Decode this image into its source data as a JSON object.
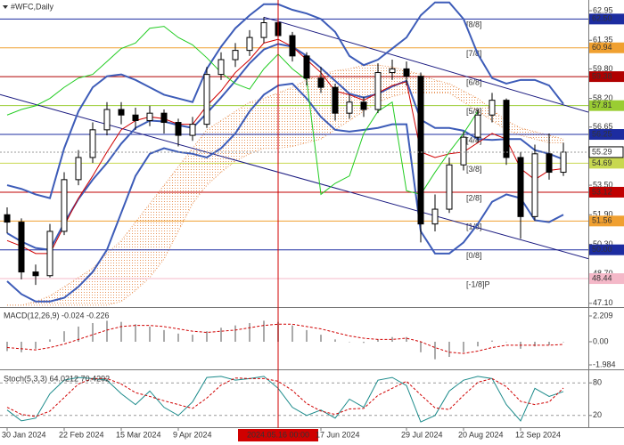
{
  "chart_data": [
    {
      "type": "candlestick",
      "title": "#WFC,Daily",
      "categories": [
        {
          "label": "30 Jan 2024"
        },
        null,
        null,
        null,
        {
          "label": "22 Feb 2024"
        },
        null,
        null,
        null,
        {
          "label": "15 Mar 2024"
        },
        null,
        null,
        null,
        {
          "label": "9 Apr 2024"
        },
        null,
        null,
        null,
        null,
        null,
        null,
        {
          "label": "2024.05.16 00:00",
          "crosshair": true
        },
        null,
        null,
        {
          "label": "17 Jun 2024"
        },
        null,
        null,
        null,
        null,
        null,
        {
          "label": "29 Jul 2024"
        },
        null,
        null,
        null,
        {
          "label": "20 Aug 2024"
        },
        null,
        null,
        null,
        {
          "label": "12 Sep 2024"
        },
        null,
        null,
        null
      ],
      "open": [
        51.9,
        51.5,
        48.8,
        48.6,
        51.0,
        53.8,
        55.0,
        56.5,
        57.6,
        57.3,
        57.0,
        57.4,
        56.9,
        56.2,
        56.8,
        59.5,
        60.3,
        60.8,
        61.5,
        62.3,
        61.6,
        60.5,
        59.3,
        58.8,
        57.4,
        58.0,
        57.6,
        59.6,
        59.8,
        59.4,
        51.4,
        52.2,
        54.6,
        56.1,
        57.3,
        58.1,
        55.0,
        51.8,
        55.2,
        54.2
      ],
      "high": [
        52.3,
        51.7,
        49.2,
        51.4,
        54.2,
        55.4,
        56.9,
        58.0,
        58.0,
        57.7,
        57.8,
        57.6,
        57.1,
        57.2,
        59.9,
        60.7,
        61.2,
        61.9,
        62.6,
        62.5,
        61.8,
        60.7,
        59.9,
        59.0,
        58.4,
        58.3,
        60.1,
        60.3,
        60.2,
        59.6,
        53.0,
        55.0,
        56.4,
        57.6,
        58.5,
        58.2,
        55.3,
        55.7,
        56.3,
        55.8
      ],
      "low": [
        50.9,
        48.4,
        48.1,
        48.5,
        50.8,
        53.5,
        54.7,
        56.2,
        56.8,
        56.5,
        56.7,
        56.3,
        55.6,
        55.9,
        56.6,
        59.2,
        59.9,
        60.5,
        61.2,
        61.2,
        60.2,
        58.9,
        58.5,
        57.0,
        57.1,
        57.2,
        57.4,
        59.2,
        58.9,
        50.4,
        51.0,
        52.0,
        54.3,
        55.8,
        56.9,
        54.6,
        50.6,
        51.6,
        53.8,
        54.0
      ],
      "close": [
        51.5,
        48.8,
        48.6,
        51.0,
        53.8,
        55.0,
        56.5,
        57.6,
        57.3,
        57.0,
        57.4,
        56.9,
        56.2,
        56.8,
        59.5,
        60.3,
        60.8,
        61.5,
        62.3,
        61.6,
        60.5,
        59.3,
        58.8,
        57.4,
        58.0,
        57.6,
        59.6,
        59.8,
        59.4,
        51.4,
        52.2,
        54.6,
        56.1,
        57.3,
        58.1,
        55.0,
        51.8,
        55.2,
        54.2,
        55.29
      ],
      "up_color": "#ffffff",
      "down_color": "#000000",
      "overlays": [
        {
          "color": "#3d5cb8",
          "width": 2,
          "values": [
            53.5,
            53.3,
            53.0,
            52.8,
            55.5,
            57.5,
            58.8,
            59.4,
            59.5,
            59.2,
            58.8,
            58.4,
            58.2,
            58.0,
            59.8,
            61.0,
            62.0,
            62.7,
            63.3,
            63.3,
            63.0,
            62.8,
            62.5,
            61.8,
            60.5,
            60.0,
            60.3,
            60.9,
            61.5,
            62.7,
            63.4,
            63.4,
            62.5,
            60.6,
            59.3,
            59.0,
            59.2,
            59.2,
            58.9,
            57.9
          ]
        },
        {
          "color": "#3d5cb8",
          "width": 2,
          "values": [
            50.9,
            50.45,
            50.1,
            50.0,
            51.45,
            52.75,
            53.8,
            54.7,
            55.75,
            56.6,
            57.0,
            56.95,
            56.75,
            56.6,
            57.4,
            58.25,
            59.15,
            60.1,
            60.85,
            61.15,
            61.0,
            60.5,
            59.85,
            59.15,
            58.45,
            58.25,
            58.45,
            58.85,
            59.15,
            57.05,
            56.6,
            56.6,
            56.45,
            56.0,
            55.95,
            56.0,
            56.0,
            55.4,
            55.2,
            54.9
          ]
        },
        {
          "color": "#3d5cb8",
          "width": 2,
          "values": [
            48.3,
            47.6,
            47.2,
            47.2,
            47.4,
            48.0,
            48.8,
            50.0,
            52.0,
            54.0,
            55.2,
            55.5,
            55.3,
            55.2,
            55.0,
            55.5,
            56.3,
            57.5,
            58.4,
            58.9,
            59.0,
            58.2,
            57.2,
            56.5,
            56.4,
            56.5,
            56.6,
            56.8,
            56.8,
            51.0,
            49.8,
            49.8,
            50.4,
            51.4,
            52.6,
            53.0,
            52.8,
            51.6,
            51.5,
            51.9
          ]
        },
        {
          "color": "#d00000",
          "width": 1,
          "values": [
            50.5,
            50.2,
            49.8,
            49.8,
            51.3,
            52.8,
            54.0,
            55.3,
            56.5,
            57.0,
            57.2,
            57.1,
            56.8,
            56.8,
            57.8,
            58.6,
            59.6,
            60.3,
            61.2,
            61.4,
            61.0,
            60.3,
            59.6,
            58.6,
            58.4,
            58.1,
            58.5,
            58.9,
            59.1,
            55.3,
            55.0,
            55.2,
            55.3,
            55.8,
            56.3,
            56.0,
            54.4,
            53.8,
            54.3,
            54.4
          ]
        },
        {
          "color": "#22cc22",
          "width": 1,
          "values": [
            57.3,
            57.6,
            57.8,
            58.2,
            58.8,
            59.3,
            59.5,
            60.2,
            60.9,
            61.2,
            62.0,
            62.1,
            61.5,
            61.1,
            60.4,
            59.6,
            59.0,
            58.7,
            59.8,
            60.6,
            59.8,
            59.2,
            53.0,
            53.6,
            54.0,
            56.3,
            57.5,
            58.0,
            53.2,
            53.0,
            54.2,
            55.3,
            56.3,
            57.5,
            null,
            null,
            null,
            null,
            null,
            null
          ]
        }
      ],
      "cloud": {
        "color": "#e8955a",
        "span_a": [
          47.0,
          47.0,
          47.2,
          47.5,
          48.0,
          48.5,
          49.0,
          49.8,
          50.5,
          51.5,
          52.5,
          53.5,
          54.5,
          55.5,
          56.5,
          57.0,
          57.5,
          58.0,
          58.2,
          58.5,
          58.8,
          59.2,
          59.5,
          59.7,
          59.8,
          60.0,
          60.0,
          59.9,
          59.7,
          59.5,
          59.2,
          59.0,
          58.6,
          58.2,
          57.6,
          57.0,
          56.6,
          56.4,
          56.2,
          56.0
        ],
        "span_b": [
          47.0,
          47.0,
          47.0,
          47.0,
          47.0,
          47.0,
          47.0,
          47.0,
          47.2,
          47.8,
          48.5,
          49.5,
          51.0,
          52.5,
          53.5,
          54.2,
          54.8,
          55.2,
          55.5,
          55.5,
          55.6,
          55.8,
          56.0,
          56.5,
          57.0,
          57.5,
          58.0,
          58.3,
          58.5,
          58.5,
          58.5,
          58.5,
          58.0,
          57.5,
          57.0,
          56.5,
          56.2,
          56.0,
          55.8,
          55.8
        ]
      },
      "trendlines": [
        {
          "color": "#1a1a80",
          "start": [
            0,
            58.3
          ],
          "end": [
            39,
            49.9
          ]
        },
        {
          "color": "#1a1a80",
          "start": [
            18,
            62.6
          ],
          "end": [
            39,
            57.85
          ]
        }
      ],
      "levels": [
        {
          "name": "[8/8]",
          "value": 62.5,
          "value_label": "62.50",
          "color": "#1c2ca0",
          "text_color": "#ffffff"
        },
        {
          "name": "[7/8]",
          "value": 60.94,
          "color": "#f0a030",
          "text_color": "#ffffff"
        },
        {
          "name": "[6/8]",
          "value": 59.38,
          "color": "#b00000",
          "text_color": "#ffffff"
        },
        {
          "name": "[5/8]",
          "value": 57.81,
          "color": "#9acd32",
          "text_color": "#000000"
        },
        {
          "name": "[4/8]",
          "value": 56.25,
          "color": "#1c2ca0",
          "text_color": "#ffffff"
        },
        {
          "name": "[3/8]",
          "value": 54.69,
          "color": "#c8d850",
          "text_color": "#000000"
        },
        {
          "name": "[2/8]",
          "value": 53.12,
          "color": "#c00000",
          "text_color": "#ffffff"
        },
        {
          "name": "[1/8]",
          "value": 51.56,
          "color": "#f0a030",
          "text_color": "#ffffff"
        },
        {
          "name": "[0/8]",
          "value": 50.0,
          "value_label": "50.00",
          "color": "#1c2ca0",
          "text_color": "#ffffff"
        },
        {
          "name": "[-1/8]P",
          "value": 48.44,
          "color": "#f4b8c8",
          "text_color": "#ffffff"
        }
      ],
      "current_price": 55.29,
      "ylim": [
        46.9,
        63.53
      ],
      "yticks": [
        62.95,
        61.35,
        {
          "value": 59.8,
          "label": "59.80"
        },
        {
          "value": 58.2,
          "label": "58.20"
        },
        56.65,
        55.05,
        {
          "value": 53.5,
          "label": "53.50"
        },
        {
          "value": 51.9,
          "label": "51.90"
        },
        {
          "value": 50.3,
          "label": "50.30"
        },
        {
          "value": 48.7,
          "label": "48.70"
        },
        {
          "value": 47.1,
          "label": "47.10"
        }
      ],
      "grid": false
    },
    {
      "type": "macd",
      "title": "MACD(12,26,9) -0.024 -0.226",
      "histogram": {
        "color": "#aaaaaa",
        "values": [
          -0.8,
          -0.9,
          -0.6,
          0.2,
          0.9,
          1.3,
          1.6,
          1.8,
          1.7,
          1.5,
          1.3,
          1.0,
          0.7,
          0.6,
          0.9,
          1.2,
          1.4,
          1.6,
          1.8,
          1.7,
          1.4,
          1.0,
          0.6,
          0.2,
          0.0,
          -0.1,
          0.2,
          0.4,
          0.4,
          -0.9,
          -1.5,
          -1.3,
          -0.9,
          -0.4,
          0.1,
          0.0,
          -0.6,
          -0.4,
          -0.3,
          -0.024
        ]
      },
      "signal": {
        "color": "#d00000",
        "values": [
          -0.5,
          -0.6,
          -0.7,
          -0.5,
          -0.2,
          0.2,
          0.6,
          1.0,
          1.3,
          1.4,
          1.4,
          1.3,
          1.1,
          0.9,
          0.8,
          0.9,
          1.0,
          1.2,
          1.4,
          1.5,
          1.5,
          1.3,
          1.1,
          0.8,
          0.5,
          0.3,
          0.2,
          0.2,
          0.3,
          0.0,
          -0.5,
          -0.9,
          -1.0,
          -0.8,
          -0.5,
          -0.3,
          -0.3,
          -0.3,
          -0.3,
          -0.226
        ]
      },
      "ylim": [
        -2.29,
        2.82
      ],
      "yticks": [
        2.209,
        {
          "value": 0,
          "label": "0.00"
        },
        -1.984
      ],
      "grid": false
    },
    {
      "type": "stoch",
      "title": "Stoch(5,3,3) 64.0212 70.4292",
      "k": {
        "color": "#1a8a8a",
        "values": [
          30,
          10,
          15,
          60,
          85,
          90,
          88,
          85,
          60,
          40,
          65,
          35,
          20,
          45,
          90,
          92,
          85,
          88,
          92,
          70,
          35,
          20,
          30,
          15,
          50,
          35,
          85,
          90,
          75,
          8,
          20,
          65,
          85,
          92,
          88,
          40,
          10,
          70,
          55,
          64.0212
        ]
      },
      "d": {
        "color": "#d00000",
        "values": [
          35,
          22,
          18,
          28,
          53,
          78,
          88,
          88,
          78,
          62,
          55,
          47,
          40,
          33,
          52,
          76,
          89,
          88,
          88,
          83,
          66,
          42,
          28,
          22,
          32,
          33,
          57,
          70,
          83,
          58,
          34,
          31,
          57,
          81,
          88,
          73,
          46,
          40,
          45,
          70.4292
        ]
      },
      "ylim": [
        0,
        100
      ],
      "yticks": [
        80,
        20
      ],
      "grid": true
    }
  ]
}
